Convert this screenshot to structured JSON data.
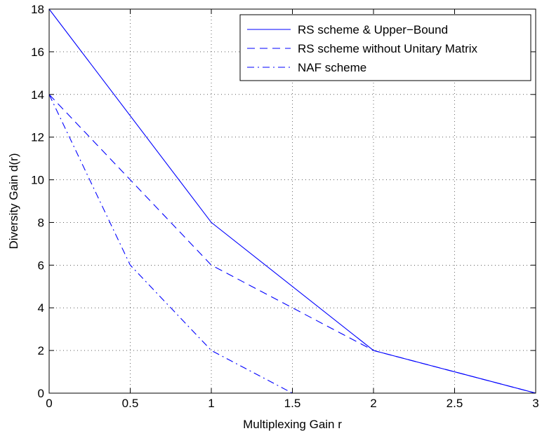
{
  "chart_data": {
    "type": "line",
    "xlabel": "Multiplexing Gain r",
    "ylabel": "Diversity Gain d(r)",
    "xlim": [
      0,
      3
    ],
    "ylim": [
      0,
      18
    ],
    "xticks": [
      0,
      0.5,
      1,
      1.5,
      2,
      2.5,
      3
    ],
    "xtick_labels": [
      "0",
      "0.5",
      "1",
      "1.5",
      "2",
      "2.5",
      "3"
    ],
    "yticks": [
      0,
      2,
      4,
      6,
      8,
      10,
      12,
      14,
      16,
      18
    ],
    "ytick_labels": [
      "0",
      "2",
      "4",
      "6",
      "8",
      "10",
      "12",
      "14",
      "16",
      "18"
    ],
    "grid": true,
    "legend_position": "top-right",
    "line_color": "#0000ff",
    "series": [
      {
        "name": "RS scheme & Upper−Bound",
        "style": "solid",
        "x": [
          0,
          1,
          2,
          3
        ],
        "y": [
          18,
          8,
          2,
          0
        ]
      },
      {
        "name": "RS scheme without Unitary Matrix",
        "style": "dashed",
        "x": [
          0,
          1,
          2,
          3
        ],
        "y": [
          14,
          6,
          2,
          0
        ]
      },
      {
        "name": "NAF scheme",
        "style": "dashdot",
        "x": [
          0,
          0.5,
          1,
          1.5,
          3
        ],
        "y": [
          14,
          6,
          2,
          0,
          0
        ]
      }
    ]
  }
}
